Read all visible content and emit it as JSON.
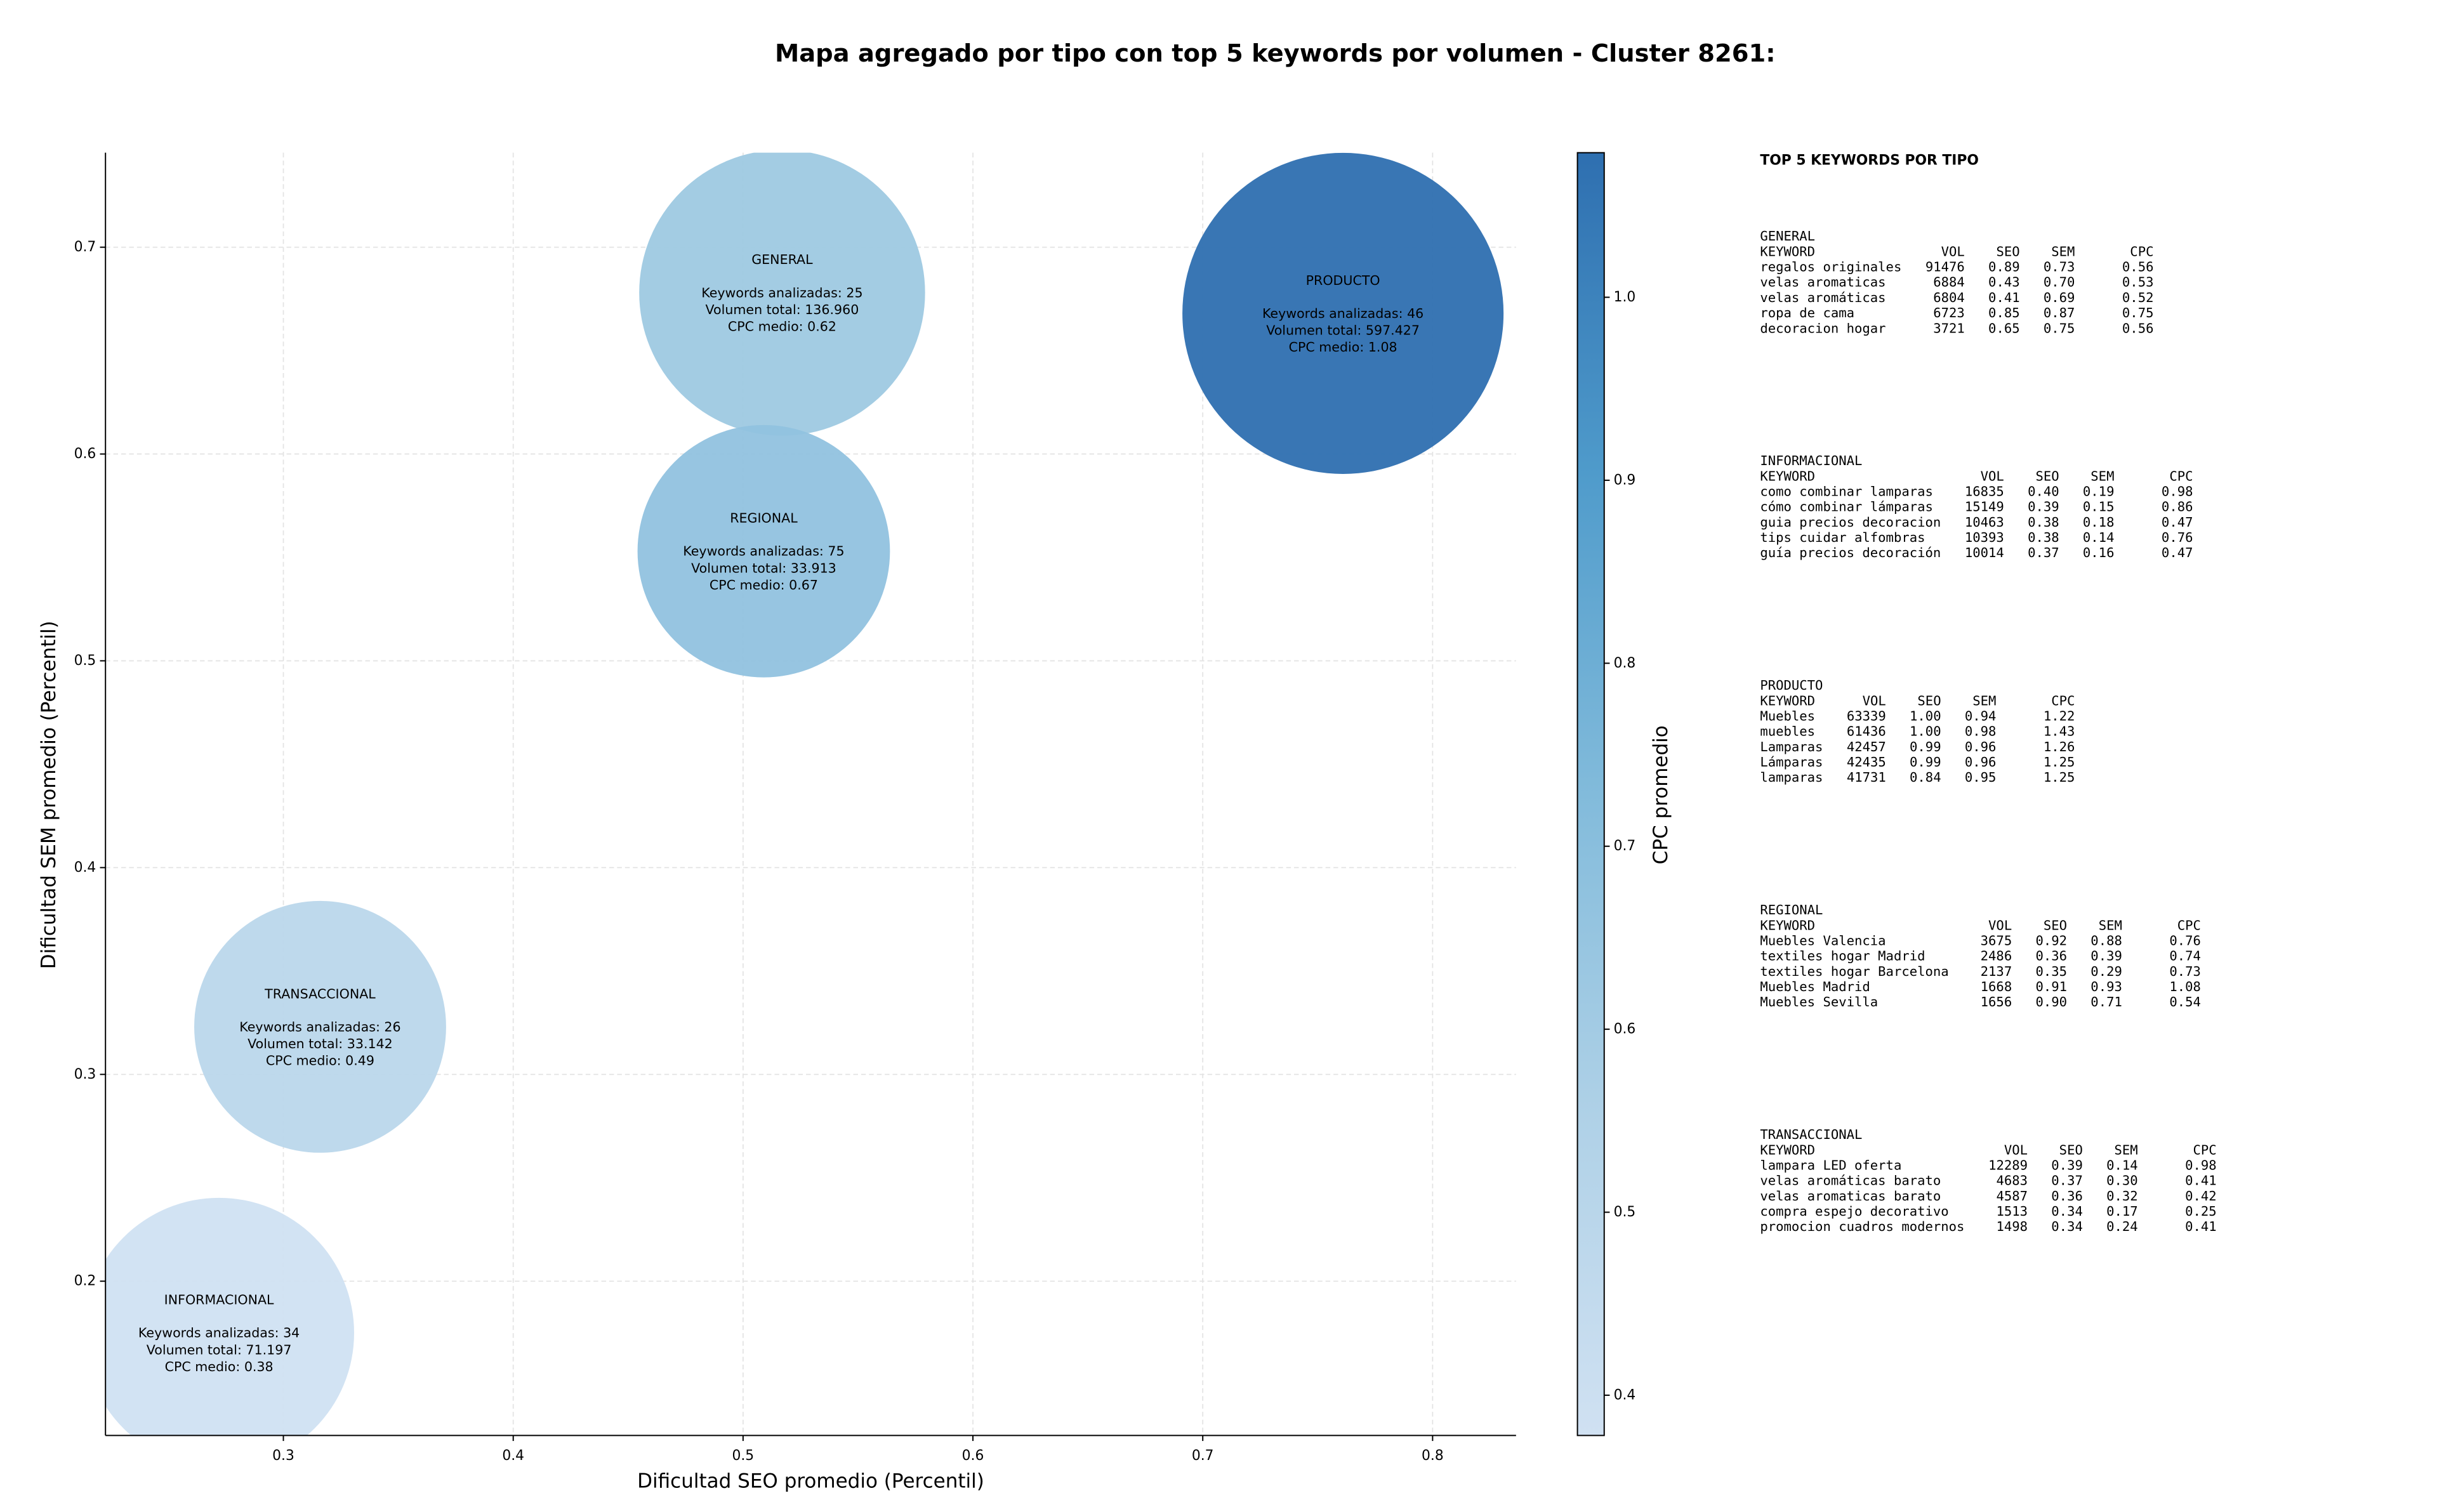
{
  "chart_data": {
    "type": "bubble",
    "title": "Mapa agregado por tipo con top 5 keywords por volumen - Cluster 8261:",
    "x_label": "Dificultad SEO promedio (Percentil)",
    "y_label": "Dificultad SEM promedio (Percentil)",
    "labels": [
      "GENERAL",
      "INFORMACIONAL",
      "PRODUCTO",
      "REGIONAL",
      "TRANSACCIONAL"
    ],
    "x": [
      0.517,
      0.272,
      0.761,
      0.509,
      0.316
    ],
    "y": [
      0.678,
      0.175,
      0.668,
      0.553,
      0.323
    ],
    "sizes": [
      136960,
      71197,
      597427,
      33913,
      33142
    ],
    "color_values": [
      0.62,
      0.38,
      1.08,
      0.67,
      0.49
    ],
    "annotations": [
      [
        "Keywords analizadas: 25",
        "Volumen total: 136.960",
        "CPC medio: 0.62"
      ],
      [
        "Keywords analizadas: 34",
        "Volumen total: 71.197",
        "CPC medio: 0.38"
      ],
      [
        "Keywords analizadas: 46",
        "Volumen total: 597.427",
        "CPC medio: 1.08"
      ],
      [
        "Keywords analizadas: 75",
        "Volumen total: 33.913",
        "CPC medio: 0.67"
      ],
      [
        "Keywords analizadas: 26",
        "Volumen total: 33.142",
        "CPC medio: 0.49"
      ]
    ],
    "xlim": [
      0.2226,
      0.8363
    ],
    "ylim": [
      0.1254,
      0.7457
    ],
    "xticks": [
      0.3,
      0.4,
      0.5,
      0.6,
      0.7,
      0.8
    ],
    "yticks": [
      0.2,
      0.3,
      0.4,
      0.5,
      0.6,
      0.7
    ],
    "grid": true,
    "colorbar": {
      "label": "CPC promedio",
      "lim": [
        0.378,
        1.079
      ],
      "ticks": [
        0.4,
        0.5,
        0.6,
        0.7,
        0.8,
        0.9,
        {
          "value": 1,
          "label": "1.0"
        }
      ],
      "colormap": [
        "#d0e1f2",
        "#afd1e7",
        "#82bbdb",
        "#4f9bcb",
        "#2e6fb0"
      ]
    }
  },
  "side_panel": {
    "title": "TOP 5 KEYWORDS POR TIPO",
    "sections": [
      {
        "name": "GENERAL",
        "columns": [
          "KEYWORD",
          "VOL",
          "SEO",
          "SEM",
          "CPC"
        ],
        "rows": [
          [
            "regalos originales",
            "91476",
            "0.89",
            "0.73",
            "0.56"
          ],
          [
            "velas aromaticas",
            "6884",
            "0.43",
            "0.70",
            "0.53"
          ],
          [
            "velas aromáticas",
            "6804",
            "0.41",
            "0.69",
            "0.52"
          ],
          [
            "ropa de cama",
            "6723",
            "0.85",
            "0.87",
            "0.75"
          ],
          [
            "decoracion hogar",
            "3721",
            "0.65",
            "0.75",
            "0.56"
          ]
        ]
      },
      {
        "name": "INFORMACIONAL",
        "columns": [
          "KEYWORD",
          "VOL",
          "SEO",
          "SEM",
          "CPC"
        ],
        "rows": [
          [
            "como combinar lamparas",
            "16835",
            "0.40",
            "0.19",
            "0.98"
          ],
          [
            "cómo combinar lámparas",
            "15149",
            "0.39",
            "0.15",
            "0.86"
          ],
          [
            "guia precios decoracion",
            "10463",
            "0.38",
            "0.18",
            "0.47"
          ],
          [
            "tips cuidar alfombras",
            "10393",
            "0.38",
            "0.14",
            "0.76"
          ],
          [
            "guía precios decoración",
            "10014",
            "0.37",
            "0.16",
            "0.47"
          ]
        ]
      },
      {
        "name": "PRODUCTO",
        "columns": [
          "KEYWORD",
          "VOL",
          "SEO",
          "SEM",
          "CPC"
        ],
        "rows": [
          [
            "Muebles",
            "63339",
            "1.00",
            "0.94",
            "1.22"
          ],
          [
            "muebles",
            "61436",
            "1.00",
            "0.98",
            "1.43"
          ],
          [
            "Lamparas",
            "42457",
            "0.99",
            "0.96",
            "1.26"
          ],
          [
            "Lámparas",
            "42435",
            "0.99",
            "0.96",
            "1.25"
          ],
          [
            "lamparas",
            "41731",
            "0.84",
            "0.95",
            "1.25"
          ]
        ]
      },
      {
        "name": "REGIONAL",
        "columns": [
          "KEYWORD",
          "VOL",
          "SEO",
          "SEM",
          "CPC"
        ],
        "rows": [
          [
            "Muebles Valencia",
            "3675",
            "0.92",
            "0.88",
            "0.76"
          ],
          [
            "textiles hogar Madrid",
            "2486",
            "0.36",
            "0.39",
            "0.74"
          ],
          [
            "textiles hogar Barcelona",
            "2137",
            "0.35",
            "0.29",
            "0.73"
          ],
          [
            "Muebles Madrid",
            "1668",
            "0.91",
            "0.93",
            "1.08"
          ],
          [
            "Muebles Sevilla",
            "1656",
            "0.90",
            "0.71",
            "0.54"
          ]
        ]
      },
      {
        "name": "TRANSACCIONAL",
        "columns": [
          "KEYWORD",
          "VOL",
          "SEO",
          "SEM",
          "CPC"
        ],
        "rows": [
          [
            "lampara LED oferta",
            "12289",
            "0.39",
            "0.14",
            "0.98"
          ],
          [
            "velas aromáticas barato",
            "4683",
            "0.37",
            "0.30",
            "0.41"
          ],
          [
            "velas aromaticas barato",
            "4587",
            "0.36",
            "0.32",
            "0.42"
          ],
          [
            "compra espejo decorativo",
            "1513",
            "0.34",
            "0.17",
            "0.25"
          ],
          [
            "promocion cuadros modernos",
            "1498",
            "0.34",
            "0.24",
            "0.41"
          ]
        ]
      }
    ]
  }
}
